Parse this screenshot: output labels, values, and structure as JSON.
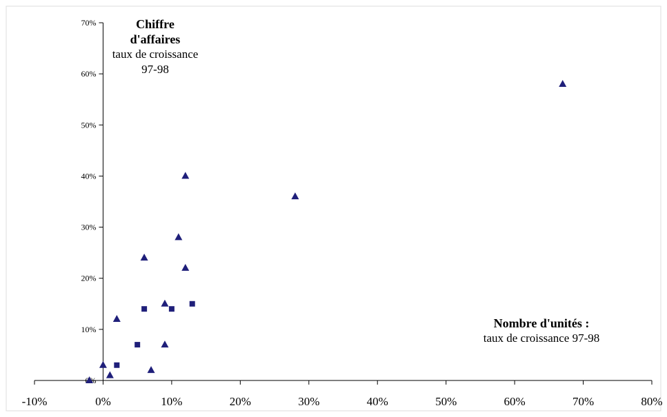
{
  "chart_data": {
    "type": "scatter",
    "title": "",
    "ylabel": "Chiffre d'affaires",
    "ylabel_sub": "taux de croissance 97-98",
    "xlabel": "Nombre d'unités :",
    "xlabel_sub": "taux de croissance 97-98",
    "xlim": [
      -0.1,
      0.8
    ],
    "ylim": [
      0,
      0.7
    ],
    "x_ticks": [
      -0.1,
      0,
      0.1,
      0.2,
      0.3,
      0.4,
      0.5,
      0.6,
      0.7,
      0.8
    ],
    "x_tick_labels": [
      "-10%",
      "0%",
      "10%",
      "20%",
      "30%",
      "40%",
      "50%",
      "60%",
      "70%",
      "80%"
    ],
    "y_ticks": [
      0,
      0.1,
      0.2,
      0.3,
      0.4,
      0.5,
      0.6,
      0.7
    ],
    "y_tick_labels": [
      "0%",
      "10%",
      "20%",
      "30%",
      "40%",
      "50%",
      "60%",
      "70%"
    ],
    "grid": false,
    "legend": "none",
    "color": "#1f1f7a",
    "series": [
      {
        "marker": "triangle",
        "points": [
          {
            "x": -0.02,
            "y": 0.0
          },
          {
            "x": 0.0,
            "y": 0.03
          },
          {
            "x": 0.01,
            "y": 0.01
          },
          {
            "x": 0.02,
            "y": 0.12
          },
          {
            "x": 0.06,
            "y": 0.24
          },
          {
            "x": 0.07,
            "y": 0.02
          },
          {
            "x": 0.09,
            "y": 0.07
          },
          {
            "x": 0.09,
            "y": 0.15
          },
          {
            "x": 0.11,
            "y": 0.28
          },
          {
            "x": 0.12,
            "y": 0.4
          },
          {
            "x": 0.12,
            "y": 0.22
          },
          {
            "x": 0.28,
            "y": 0.36
          },
          {
            "x": 0.67,
            "y": 0.58
          }
        ]
      },
      {
        "marker": "square",
        "points": [
          {
            "x": 0.02,
            "y": 0.03
          },
          {
            "x": 0.05,
            "y": 0.07
          },
          {
            "x": 0.06,
            "y": 0.14
          },
          {
            "x": 0.1,
            "y": 0.14
          },
          {
            "x": 0.13,
            "y": 0.15
          }
        ]
      }
    ]
  }
}
